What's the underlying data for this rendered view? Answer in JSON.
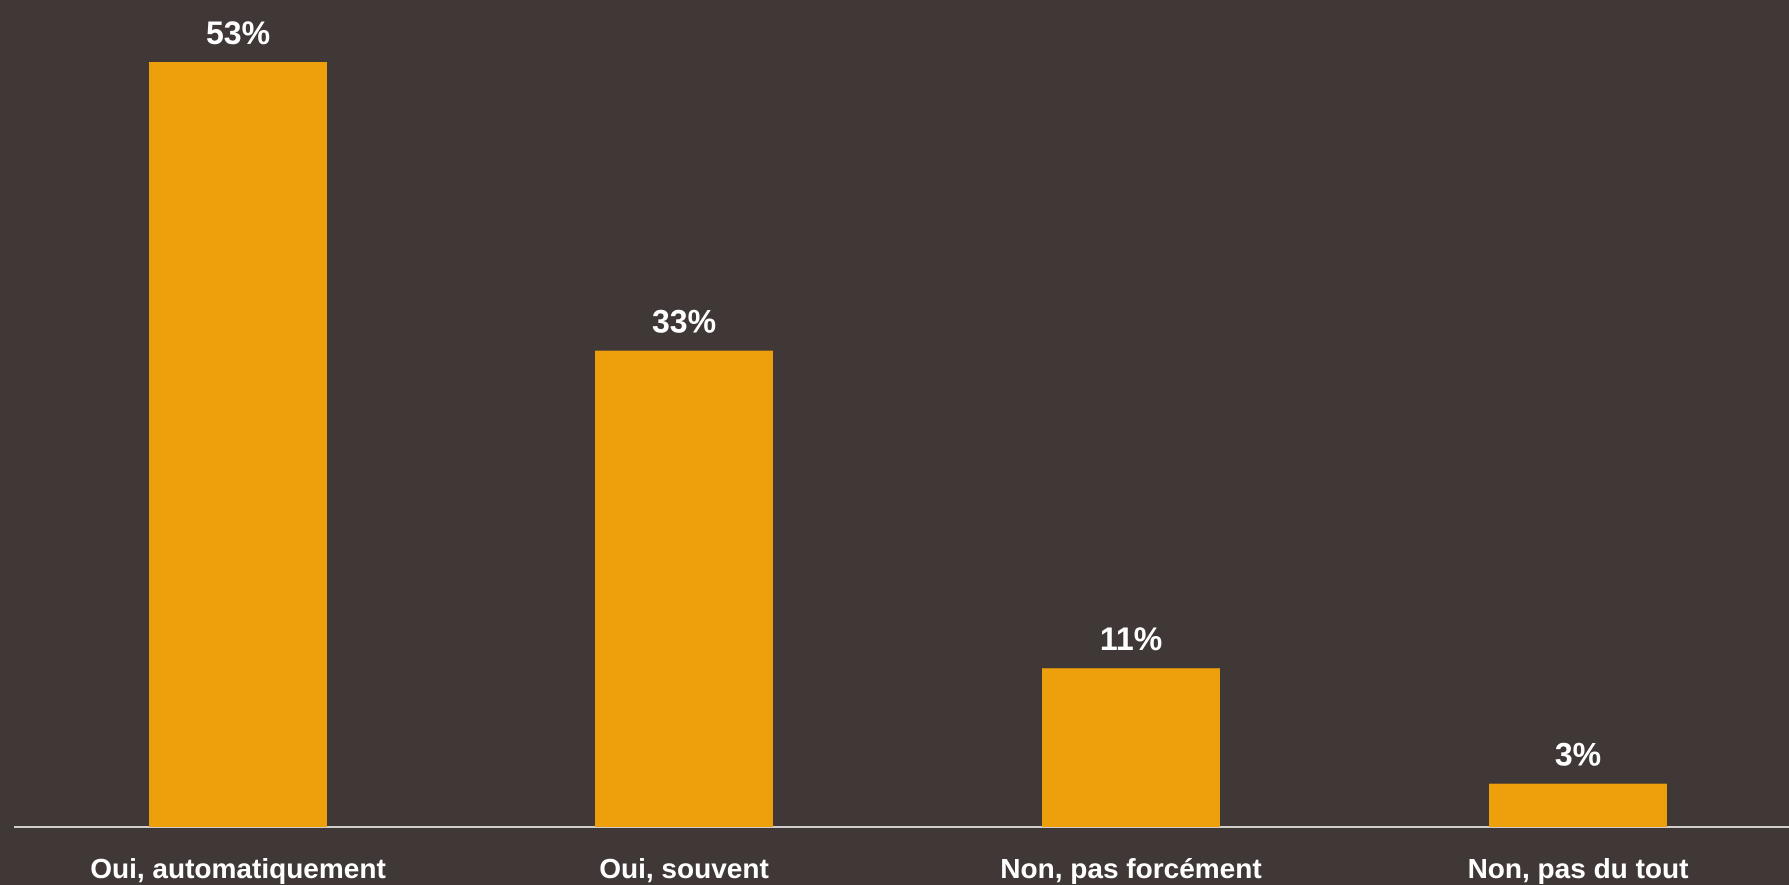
{
  "chart_data": {
    "type": "bar",
    "categories": [
      "Oui, automatiquement",
      "Oui, souvent",
      "Non, pas forcément",
      "Non, pas du tout"
    ],
    "values": [
      53,
      33,
      11,
      3
    ],
    "value_labels": [
      "53%",
      "33%",
      "11%",
      "3%"
    ],
    "title": "",
    "xlabel": "",
    "ylabel": "",
    "ylim": [
      0,
      53
    ],
    "grid": false,
    "legend": "none",
    "colors": {
      "background": "#403737",
      "bar": "#EDA00B",
      "text": "#FFFFFF",
      "axis": "#FFFFFF"
    }
  }
}
